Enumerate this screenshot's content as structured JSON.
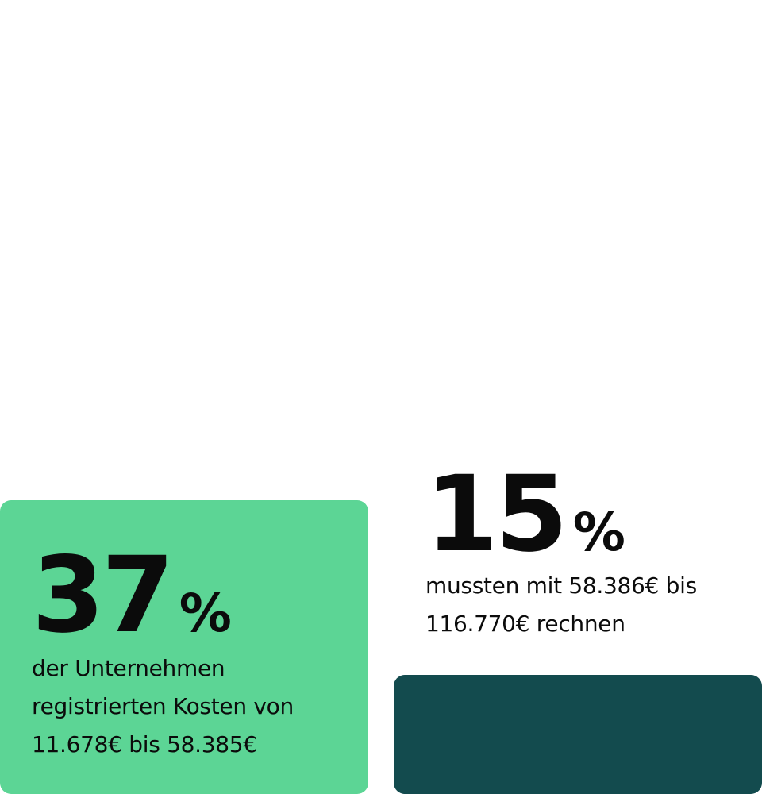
{
  "chart_data": {
    "type": "table",
    "items": [
      {
        "value": 37,
        "number": "37",
        "unit": "%",
        "caption_lines": [
          "der Unternehmen",
          "registrierten Kosten von",
          "11.678€ bis 58.385€"
        ]
      },
      {
        "value": 15,
        "number": "15",
        "unit": "%",
        "caption_lines": [
          "mussten mit 58.386€ bis",
          "116.770€ rechnen"
        ]
      }
    ]
  },
  "colors": {
    "green_card": "#5cd595",
    "dark_card": "#134b4e",
    "text": "#0b0b0b"
  }
}
